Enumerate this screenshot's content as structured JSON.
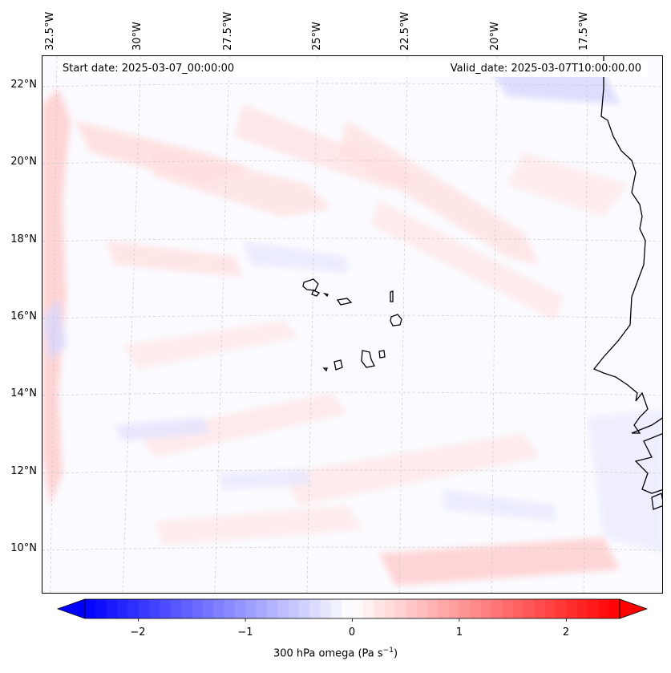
{
  "figure": {
    "start_date": "Start date: 2025-03-07_00:00:00",
    "valid_date": "Valid_date: 2025-03-07T10:00:00.00"
  },
  "longitude_labels": [
    "32.5°W",
    "30°W",
    "27.5°W",
    "25°W",
    "22.5°W",
    "20°W",
    "17.5°W"
  ],
  "latitude_labels": [
    "22°N",
    "20°N",
    "18°N",
    "16°N",
    "14°N",
    "12°N",
    "10°N"
  ],
  "colorbar": {
    "tick_labels": [
      "−2",
      "−1",
      "0",
      "1",
      "2"
    ],
    "tick_values": [
      -2,
      -1,
      0,
      1,
      2
    ],
    "range": [
      -2.5,
      2.5
    ],
    "label_main": "300 hPa omega (Pa s",
    "label_exp": "−1",
    "label_close": ")",
    "colors": {
      "low": "#0000ff",
      "mid": "#ffffff",
      "high": "#ff0000"
    }
  },
  "map": {
    "ocean_color": "#fbfbff",
    "coastline_color": "#000000"
  }
}
